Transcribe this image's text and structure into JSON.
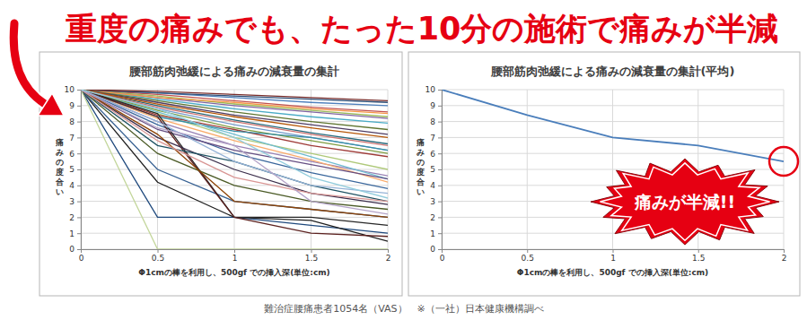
{
  "headline": "重度の痛みでも、たった10分の施術で痛みが半減",
  "chart_data": [
    {
      "type": "line",
      "title": "腰部筋肉弛緩による痛みの減衰量の集計",
      "x_label": "Φ1cmの棒を利用し、500gf での挿入深(単位:cm)",
      "y_label": "痛みの度合い",
      "x": [
        0,
        0.5,
        1,
        1.5,
        2
      ],
      "xlim": [
        0,
        2
      ],
      "xticks": [
        0,
        0.5,
        1,
        1.5,
        2
      ],
      "ylim": [
        0,
        10
      ],
      "yticks": [
        0,
        1,
        2,
        3,
        4,
        5,
        6,
        7,
        8,
        9,
        10
      ],
      "grid": true,
      "series": [
        {
          "color": "#4F81BD",
          "values": [
            10,
            9.8,
            9.5,
            9.2,
            9.0
          ]
        },
        {
          "color": "#C0504D",
          "values": [
            10,
            9.7,
            9.3,
            8.9,
            8.6
          ]
        },
        {
          "color": "#9BBB59",
          "values": [
            10,
            9.6,
            9.1,
            8.7,
            8.3
          ]
        },
        {
          "color": "#8064A2",
          "values": [
            10,
            9.5,
            9.0,
            8.6,
            8.2
          ]
        },
        {
          "color": "#4BACC6",
          "values": [
            10,
            9.4,
            8.8,
            8.3,
            7.9
          ]
        },
        {
          "color": "#F79646",
          "values": [
            10,
            9.5,
            9.2,
            8.8,
            8.5
          ]
        },
        {
          "color": "#2C4D75",
          "values": [
            10,
            9.8,
            9.6,
            9.4,
            9.2
          ]
        },
        {
          "color": "#772C2A",
          "values": [
            10,
            9.9,
            9.7,
            9.5,
            9.3
          ]
        },
        {
          "color": "#5F7530",
          "values": [
            10,
            9.3,
            8.6,
            8.0,
            7.5
          ]
        },
        {
          "color": "#4D3B62",
          "values": [
            10,
            9.2,
            8.4,
            7.8,
            7.2
          ]
        },
        {
          "color": "#276A7C",
          "values": [
            10,
            9.0,
            8.1,
            7.3,
            6.6
          ]
        },
        {
          "color": "#B65708",
          "values": [
            10,
            9.1,
            8.3,
            7.6,
            7.0
          ]
        },
        {
          "color": "#729ACA",
          "values": [
            10,
            8.8,
            7.8,
            7.0,
            6.2
          ]
        },
        {
          "color": "#CD7371",
          "values": [
            10,
            8.9,
            8.0,
            7.2,
            6.5
          ]
        },
        {
          "color": "#AFC97A",
          "values": [
            10,
            8.5,
            7.0,
            6.0,
            5.0
          ]
        },
        {
          "color": "#9983B5",
          "values": [
            10,
            8.0,
            6.5,
            5.5,
            4.6
          ]
        },
        {
          "color": "#6FBDD1",
          "values": [
            10,
            8.6,
            7.2,
            5.8,
            4.4
          ]
        },
        {
          "color": "#F9AB6B",
          "values": [
            10,
            8.2,
            6.8,
            5.6,
            4.2
          ]
        },
        {
          "color": "#3A679C",
          "values": [
            10,
            7.8,
            6.0,
            4.8,
            3.8
          ]
        },
        {
          "color": "#9F3B38",
          "values": [
            10,
            8.4,
            7.5,
            6.5,
            5.8
          ]
        },
        {
          "color": "#7E9C40",
          "values": [
            10,
            8.7,
            7.6,
            6.8,
            6.0
          ]
        },
        {
          "color": "#664F83",
          "values": [
            10,
            7.5,
            6.2,
            5.3,
            4.4
          ]
        },
        {
          "color": "#358EA6",
          "values": [
            10,
            8.3,
            7.4,
            7.0,
            6.2
          ]
        },
        {
          "color": "#1F497D",
          "values": [
            10,
            2.0,
            2.0,
            1.5,
            1.0
          ]
        },
        {
          "color": "#1F1F1F",
          "values": [
            10,
            4.2,
            2.0,
            1.8,
            0.5
          ]
        },
        {
          "color": "#366092",
          "values": [
            10,
            5.0,
            3.0,
            2.5,
            2.0
          ]
        },
        {
          "color": "#C3D69B",
          "values": [
            10,
            0,
            0,
            0,
            0
          ]
        },
        {
          "color": "#262626",
          "values": [
            10,
            8.5,
            2.0,
            2.0,
            1.5
          ]
        },
        {
          "color": "#5C2220",
          "values": [
            10,
            8.3,
            2.0,
            1.0,
            0.8
          ]
        },
        {
          "color": "#4A5A25",
          "values": [
            10,
            6.0,
            4.0,
            3.0,
            2.5
          ]
        },
        {
          "color": "#3B2E4B",
          "values": [
            10,
            7.0,
            5.0,
            3.5,
            2.8
          ]
        },
        {
          "color": "#1E5262",
          "values": [
            10,
            6.5,
            5.5,
            4.0,
            3.0
          ]
        },
        {
          "color": "#8D4306",
          "values": [
            10,
            7.2,
            3.0,
            2.5,
            2.0
          ]
        },
        {
          "color": "#95B3D7",
          "values": [
            10,
            8.0,
            5.5,
            4.0,
            3.5
          ]
        },
        {
          "color": "#D99694",
          "values": [
            10,
            6.8,
            4.5,
            3.5,
            3.0
          ]
        },
        {
          "color": "#B3A2C7",
          "values": [
            10,
            7.6,
            6.5,
            3.0,
            2.2
          ]
        },
        {
          "color": "#93CDDD",
          "values": [
            10,
            8.8,
            7.0,
            4.5,
            3.2
          ]
        }
      ]
    },
    {
      "type": "line",
      "title": "腰部筋肉弛緩による痛みの減衰量の集計(平均)",
      "x_label": "Φ1cmの棒を利用し、500gf での挿入深(単位:cm)",
      "y_label": "痛みの度合い",
      "x": [
        0,
        0.5,
        1,
        1.5,
        2
      ],
      "xlim": [
        0,
        2
      ],
      "xticks": [
        0,
        0.5,
        1,
        1.5,
        2
      ],
      "ylim": [
        0,
        10
      ],
      "yticks": [
        0,
        1,
        2,
        3,
        4,
        5,
        6,
        7,
        8,
        9,
        10
      ],
      "grid": true,
      "series": [
        {
          "color": "#4A7EBB",
          "values": [
            10,
            8.4,
            7.0,
            6.5,
            5.5
          ]
        }
      ],
      "annotations": [
        {
          "text": "痛みが半減!!",
          "x": 2,
          "y": 5.5
        }
      ]
    }
  ],
  "footnote": "難治症腰痛患者1054名（VAS）　※（一社）日本健康機構調べ"
}
